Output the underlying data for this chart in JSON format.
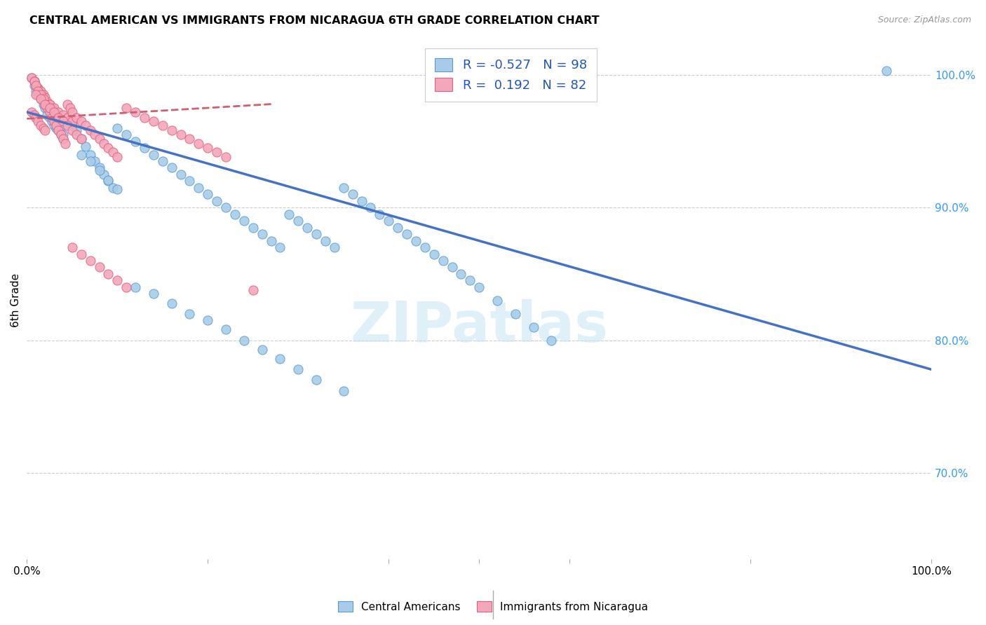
{
  "title": "CENTRAL AMERICAN VS IMMIGRANTS FROM NICARAGUA 6TH GRADE CORRELATION CHART",
  "source": "Source: ZipAtlas.com",
  "ylabel": "6th Grade",
  "watermark": "ZIPatlas",
  "xlim": [
    0.0,
    1.0
  ],
  "ylim": [
    0.635,
    1.025
  ],
  "ytick_labels_right": [
    "100.0%",
    "90.0%",
    "80.0%",
    "70.0%"
  ],
  "ytick_positions_right": [
    1.0,
    0.9,
    0.8,
    0.7
  ],
  "blue_R": -0.527,
  "blue_N": 98,
  "pink_R": 0.192,
  "pink_N": 82,
  "blue_color": "#a8cce8",
  "pink_color": "#f4a7b9",
  "blue_edge_color": "#5b9bd5",
  "pink_edge_color": "#e06080",
  "blue_line_color": "#4472c4",
  "pink_line_color": "#d06070",
  "legend_label_blue": "Central Americans",
  "legend_label_pink": "Immigrants from Nicaragua",
  "blue_line_x0": 0.0,
  "blue_line_y0": 0.972,
  "blue_line_x1": 1.0,
  "blue_line_y1": 0.778,
  "pink_line_x0": 0.0,
  "pink_line_y0": 0.967,
  "pink_line_x1": 0.27,
  "pink_line_y1": 0.978,
  "blue_scatter_x": [
    0.005,
    0.008,
    0.01,
    0.012,
    0.015,
    0.018,
    0.02,
    0.022,
    0.025,
    0.028,
    0.03,
    0.032,
    0.035,
    0.038,
    0.04,
    0.008,
    0.012,
    0.016,
    0.02,
    0.024,
    0.028,
    0.032,
    0.036,
    0.04,
    0.045,
    0.05,
    0.055,
    0.06,
    0.065,
    0.07,
    0.075,
    0.08,
    0.085,
    0.09,
    0.095,
    0.1,
    0.11,
    0.12,
    0.13,
    0.14,
    0.15,
    0.16,
    0.17,
    0.18,
    0.19,
    0.2,
    0.21,
    0.22,
    0.23,
    0.24,
    0.25,
    0.26,
    0.27,
    0.28,
    0.29,
    0.3,
    0.31,
    0.32,
    0.33,
    0.34,
    0.35,
    0.36,
    0.37,
    0.38,
    0.39,
    0.4,
    0.41,
    0.42,
    0.43,
    0.44,
    0.45,
    0.46,
    0.47,
    0.48,
    0.49,
    0.5,
    0.52,
    0.54,
    0.56,
    0.58,
    0.06,
    0.07,
    0.08,
    0.09,
    0.1,
    0.12,
    0.14,
    0.16,
    0.18,
    0.2,
    0.22,
    0.24,
    0.26,
    0.28,
    0.3,
    0.32,
    0.35,
    0.95
  ],
  "blue_scatter_y": [
    0.998,
    0.992,
    0.988,
    0.985,
    0.982,
    0.978,
    0.975,
    0.97,
    0.968,
    0.965,
    0.962,
    0.96,
    0.958,
    0.955,
    0.952,
    0.995,
    0.99,
    0.985,
    0.98,
    0.975,
    0.97,
    0.965,
    0.96,
    0.955,
    0.968,
    0.962,
    0.958,
    0.952,
    0.946,
    0.94,
    0.935,
    0.93,
    0.925,
    0.92,
    0.915,
    0.96,
    0.955,
    0.95,
    0.945,
    0.94,
    0.935,
    0.93,
    0.925,
    0.92,
    0.915,
    0.91,
    0.905,
    0.9,
    0.895,
    0.89,
    0.885,
    0.88,
    0.875,
    0.87,
    0.895,
    0.89,
    0.885,
    0.88,
    0.875,
    0.87,
    0.915,
    0.91,
    0.905,
    0.9,
    0.895,
    0.89,
    0.885,
    0.88,
    0.875,
    0.87,
    0.865,
    0.86,
    0.855,
    0.85,
    0.845,
    0.84,
    0.83,
    0.82,
    0.81,
    0.8,
    0.94,
    0.935,
    0.928,
    0.921,
    0.914,
    0.84,
    0.835,
    0.828,
    0.82,
    0.815,
    0.808,
    0.8,
    0.793,
    0.786,
    0.778,
    0.77,
    0.762,
    1.003
  ],
  "pink_scatter_x": [
    0.005,
    0.008,
    0.01,
    0.012,
    0.015,
    0.018,
    0.02,
    0.022,
    0.025,
    0.028,
    0.005,
    0.008,
    0.01,
    0.012,
    0.015,
    0.018,
    0.02,
    0.025,
    0.03,
    0.035,
    0.04,
    0.045,
    0.05,
    0.008,
    0.01,
    0.012,
    0.015,
    0.018,
    0.02,
    0.022,
    0.025,
    0.028,
    0.03,
    0.032,
    0.035,
    0.038,
    0.04,
    0.042,
    0.045,
    0.048,
    0.05,
    0.055,
    0.06,
    0.065,
    0.07,
    0.075,
    0.08,
    0.085,
    0.09,
    0.095,
    0.1,
    0.11,
    0.12,
    0.13,
    0.14,
    0.15,
    0.16,
    0.17,
    0.18,
    0.19,
    0.2,
    0.21,
    0.22,
    0.01,
    0.015,
    0.02,
    0.025,
    0.03,
    0.035,
    0.04,
    0.045,
    0.05,
    0.055,
    0.06,
    0.05,
    0.06,
    0.07,
    0.08,
    0.09,
    0.1,
    0.11,
    0.25
  ],
  "pink_scatter_y": [
    0.998,
    0.995,
    0.992,
    0.99,
    0.988,
    0.985,
    0.983,
    0.98,
    0.978,
    0.975,
    0.972,
    0.97,
    0.968,
    0.965,
    0.962,
    0.96,
    0.958,
    0.978,
    0.975,
    0.972,
    0.97,
    0.968,
    0.965,
    0.995,
    0.992,
    0.988,
    0.985,
    0.982,
    0.978,
    0.975,
    0.972,
    0.968,
    0.965,
    0.962,
    0.958,
    0.955,
    0.952,
    0.948,
    0.978,
    0.975,
    0.972,
    0.968,
    0.965,
    0.962,
    0.958,
    0.955,
    0.952,
    0.948,
    0.945,
    0.942,
    0.938,
    0.975,
    0.972,
    0.968,
    0.965,
    0.962,
    0.958,
    0.955,
    0.952,
    0.948,
    0.945,
    0.942,
    0.938,
    0.985,
    0.982,
    0.978,
    0.975,
    0.972,
    0.968,
    0.965,
    0.962,
    0.958,
    0.955,
    0.952,
    0.87,
    0.865,
    0.86,
    0.855,
    0.85,
    0.845,
    0.84,
    0.838
  ]
}
